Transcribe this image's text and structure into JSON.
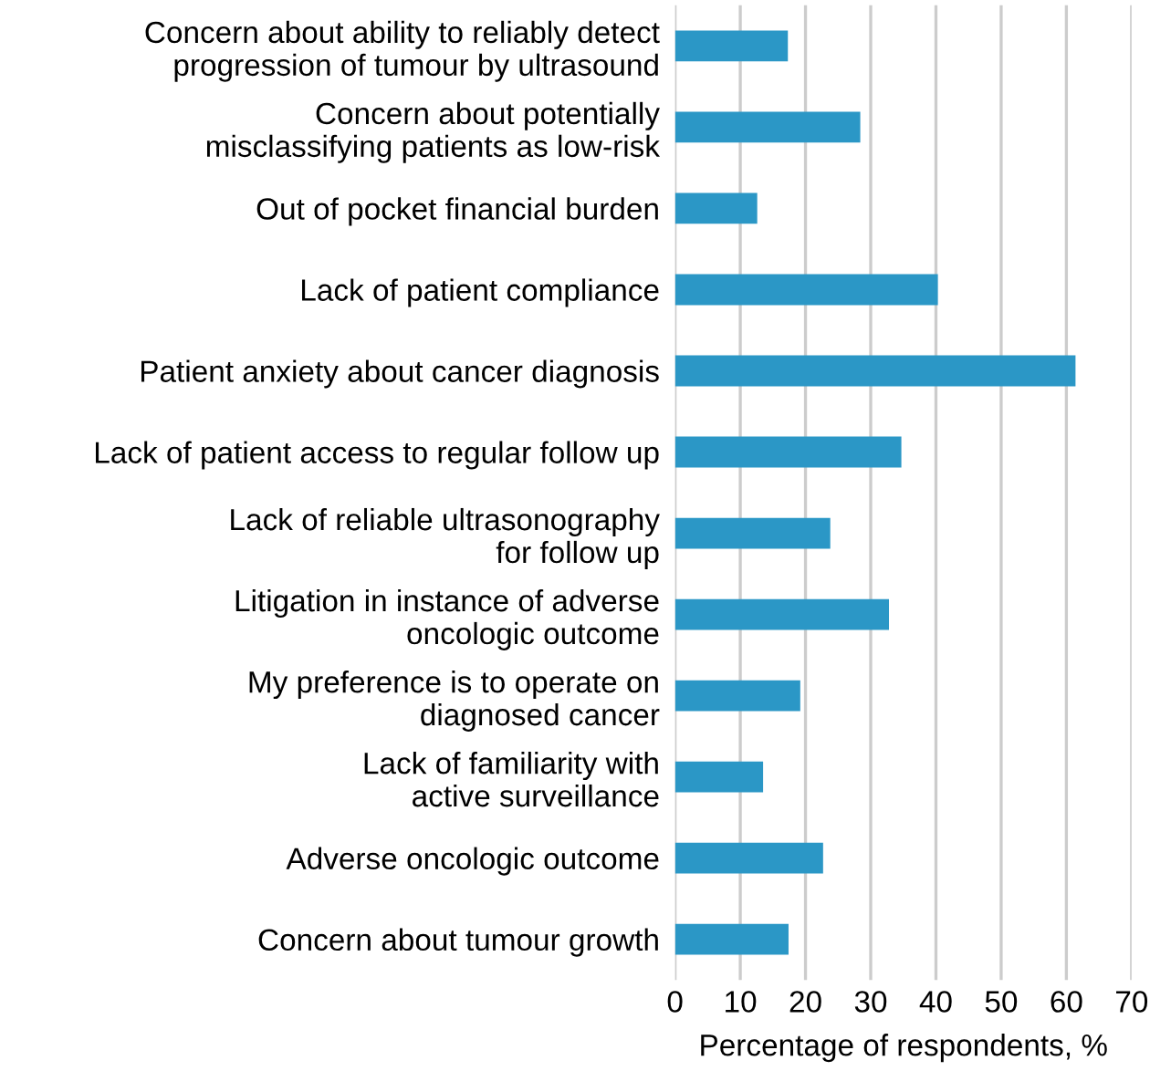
{
  "chart_data": {
    "type": "bar",
    "orientation": "horizontal",
    "xlabel": "Percentage of respondents, %",
    "categories": [
      "Concern about ability to reliably detect\nprogression of tumour by ultrasound",
      "Concern about potentially\nmisclassifying patients as low-risk",
      "Out of pocket financial burden",
      "Lack of patient compliance",
      "Patient anxiety about cancer diagnosis",
      "Lack of patient access to regular follow up",
      "Lack of reliable ultrasonography\nfor follow up",
      "Litigation in instance of adverse\noncologic outcome",
      "My preference is to operate on\ndiagnosed cancer",
      "Lack of familiarity with\nactive surveillance",
      "Adverse oncologic outcome",
      "Concern about tumour growth"
    ],
    "values": [
      17.3,
      28.4,
      12.6,
      40.3,
      61.4,
      34.7,
      23.8,
      32.8,
      19.2,
      13.5,
      22.7,
      17.4
    ],
    "color": "#2b97c6",
    "xlim": [
      0,
      70
    ],
    "xticks": [
      0,
      10,
      20,
      30,
      40,
      50,
      60,
      70
    ],
    "grid": "x"
  }
}
